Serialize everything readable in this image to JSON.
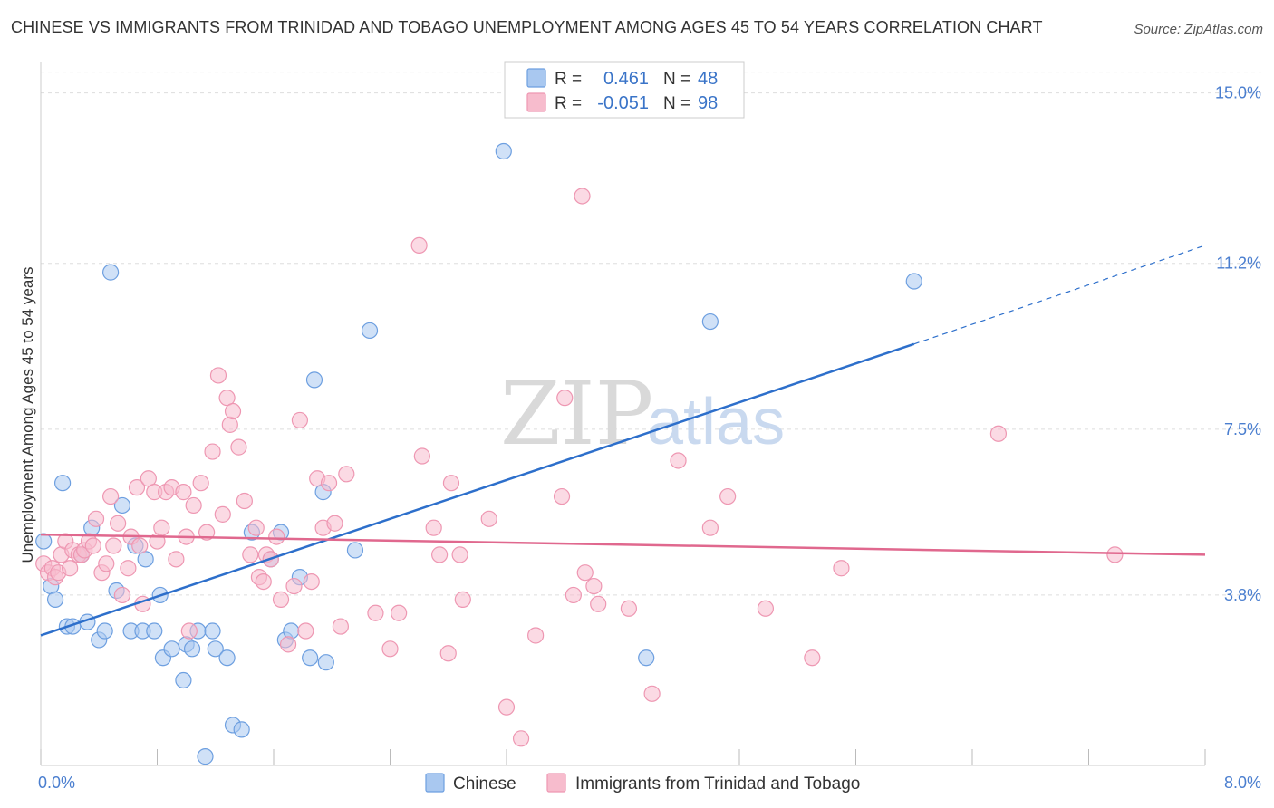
{
  "title": "CHINESE VS IMMIGRANTS FROM TRINIDAD AND TOBAGO UNEMPLOYMENT AMONG AGES 45 TO 54 YEARS CORRELATION CHART",
  "source": "Source: ZipAtlas.com",
  "watermark": {
    "zip": "ZIP",
    "atlas": "atlas"
  },
  "colors": {
    "chinese_fill": "#a9c8f0",
    "chinese_stroke": "#6d9fe0",
    "chinese_line": "#2d6fcb",
    "tt_fill": "#f7bccd",
    "tt_stroke": "#ee97b2",
    "tt_line": "#e0688e",
    "grid": "#dddddd",
    "axis_tick": "#4a7ecf"
  },
  "legend": {
    "rows": [
      {
        "r_label": "R =",
        "r_value": "0.461",
        "n_label": "N =",
        "n_value": "48"
      },
      {
        "r_label": "R =",
        "r_value": "-0.051",
        "n_label": "N =",
        "n_value": "98"
      }
    ]
  },
  "chart_data": {
    "type": "scatter",
    "title": "CHINESE VS IMMIGRANTS FROM TRINIDAD AND TOBAGO UNEMPLOYMENT AMONG AGES 45 TO 54 YEARS CORRELATION CHART",
    "xlabel": "",
    "ylabel": "Unemployment Among Ages 45 to 54 years",
    "xlim": [
      0,
      8.0
    ],
    "ylim": [
      0,
      15.7
    ],
    "x_tick_labels": [
      "0.0%",
      "8.0%"
    ],
    "y_ticks": [
      3.8,
      7.5,
      11.2,
      15.0
    ],
    "y_tick_labels": [
      "3.8%",
      "7.5%",
      "11.2%",
      "15.0%"
    ],
    "grid": true,
    "series": [
      {
        "name": "Chinese",
        "trend": {
          "x0": 0.0,
          "y0": 2.9,
          "x1": 6.0,
          "y1": 9.4,
          "dashed_to_x": 8.0,
          "dashed_to_y": 11.6
        },
        "points": [
          [
            0.02,
            5.0
          ],
          [
            0.07,
            4.0
          ],
          [
            0.1,
            3.7
          ],
          [
            0.15,
            6.3
          ],
          [
            0.18,
            3.1
          ],
          [
            0.22,
            3.1
          ],
          [
            0.28,
            4.7
          ],
          [
            0.32,
            3.2
          ],
          [
            0.35,
            5.3
          ],
          [
            0.4,
            2.8
          ],
          [
            0.44,
            3.0
          ],
          [
            0.48,
            11.0
          ],
          [
            0.52,
            3.9
          ],
          [
            0.56,
            5.8
          ],
          [
            0.62,
            3.0
          ],
          [
            0.65,
            4.9
          ],
          [
            0.7,
            3.0
          ],
          [
            0.72,
            4.6
          ],
          [
            0.78,
            3.0
          ],
          [
            0.82,
            3.8
          ],
          [
            0.84,
            2.4
          ],
          [
            0.9,
            2.6
          ],
          [
            0.98,
            1.9
          ],
          [
            1.0,
            2.7
          ],
          [
            1.04,
            2.6
          ],
          [
            1.08,
            3.0
          ],
          [
            1.13,
            0.2
          ],
          [
            1.18,
            3.0
          ],
          [
            1.2,
            2.6
          ],
          [
            1.28,
            2.4
          ],
          [
            1.32,
            0.9
          ],
          [
            1.38,
            0.8
          ],
          [
            1.45,
            5.2
          ],
          [
            1.58,
            4.6
          ],
          [
            1.65,
            5.2
          ],
          [
            1.68,
            2.8
          ],
          [
            1.72,
            3.0
          ],
          [
            1.78,
            4.2
          ],
          [
            1.85,
            2.4
          ],
          [
            1.88,
            8.6
          ],
          [
            1.94,
            6.1
          ],
          [
            1.96,
            2.3
          ],
          [
            2.16,
            4.8
          ],
          [
            2.26,
            9.7
          ],
          [
            3.18,
            13.7
          ],
          [
            4.16,
            2.4
          ],
          [
            4.6,
            9.9
          ],
          [
            6.0,
            10.8
          ]
        ]
      },
      {
        "name": "Immigrants from Trinidad and Tobago",
        "trend": {
          "x0": 0.0,
          "y0": 5.15,
          "x1": 8.0,
          "y1": 4.7
        },
        "points": [
          [
            0.02,
            4.5
          ],
          [
            0.05,
            4.3
          ],
          [
            0.08,
            4.4
          ],
          [
            0.1,
            4.2
          ],
          [
            0.12,
            4.3
          ],
          [
            0.14,
            4.7
          ],
          [
            0.17,
            5.0
          ],
          [
            0.2,
            4.4
          ],
          [
            0.22,
            4.8
          ],
          [
            0.26,
            4.7
          ],
          [
            0.28,
            4.7
          ],
          [
            0.3,
            4.8
          ],
          [
            0.33,
            5.0
          ],
          [
            0.36,
            4.9
          ],
          [
            0.38,
            5.5
          ],
          [
            0.42,
            4.3
          ],
          [
            0.45,
            4.5
          ],
          [
            0.48,
            6.0
          ],
          [
            0.5,
            4.9
          ],
          [
            0.53,
            5.4
          ],
          [
            0.56,
            3.8
          ],
          [
            0.6,
            4.4
          ],
          [
            0.62,
            5.1
          ],
          [
            0.66,
            6.2
          ],
          [
            0.68,
            4.9
          ],
          [
            0.7,
            3.6
          ],
          [
            0.74,
            6.4
          ],
          [
            0.78,
            6.1
          ],
          [
            0.8,
            5.0
          ],
          [
            0.83,
            5.3
          ],
          [
            0.86,
            6.1
          ],
          [
            0.9,
            6.2
          ],
          [
            0.93,
            4.6
          ],
          [
            0.98,
            6.1
          ],
          [
            1.0,
            5.1
          ],
          [
            1.02,
            3.0
          ],
          [
            1.05,
            5.8
          ],
          [
            1.1,
            6.3
          ],
          [
            1.14,
            5.2
          ],
          [
            1.18,
            7.0
          ],
          [
            1.22,
            8.7
          ],
          [
            1.25,
            5.6
          ],
          [
            1.28,
            8.2
          ],
          [
            1.3,
            7.6
          ],
          [
            1.32,
            7.9
          ],
          [
            1.36,
            7.1
          ],
          [
            1.4,
            5.9
          ],
          [
            1.44,
            4.7
          ],
          [
            1.48,
            5.3
          ],
          [
            1.5,
            4.2
          ],
          [
            1.53,
            4.1
          ],
          [
            1.55,
            4.7
          ],
          [
            1.58,
            4.6
          ],
          [
            1.62,
            5.1
          ],
          [
            1.65,
            3.7
          ],
          [
            1.7,
            2.7
          ],
          [
            1.74,
            4.0
          ],
          [
            1.78,
            7.7
          ],
          [
            1.82,
            3.0
          ],
          [
            1.86,
            4.1
          ],
          [
            1.9,
            6.4
          ],
          [
            1.94,
            5.3
          ],
          [
            1.98,
            6.3
          ],
          [
            2.02,
            5.4
          ],
          [
            2.06,
            3.1
          ],
          [
            2.1,
            6.5
          ],
          [
            2.3,
            3.4
          ],
          [
            2.4,
            2.6
          ],
          [
            2.46,
            3.4
          ],
          [
            2.6,
            11.6
          ],
          [
            2.62,
            6.9
          ],
          [
            2.7,
            5.3
          ],
          [
            2.74,
            4.7
          ],
          [
            2.8,
            2.5
          ],
          [
            2.82,
            6.3
          ],
          [
            2.88,
            4.7
          ],
          [
            2.9,
            3.7
          ],
          [
            3.08,
            5.5
          ],
          [
            3.2,
            1.3
          ],
          [
            3.3,
            0.6
          ],
          [
            3.4,
            2.9
          ],
          [
            3.58,
            6.0
          ],
          [
            3.6,
            8.2
          ],
          [
            3.66,
            3.8
          ],
          [
            3.72,
            12.7
          ],
          [
            3.74,
            4.3
          ],
          [
            3.8,
            4.0
          ],
          [
            3.83,
            3.6
          ],
          [
            4.04,
            3.5
          ],
          [
            4.2,
            1.6
          ],
          [
            4.38,
            6.8
          ],
          [
            4.6,
            5.3
          ],
          [
            4.72,
            6.0
          ],
          [
            4.98,
            3.5
          ],
          [
            5.3,
            2.4
          ],
          [
            5.5,
            4.4
          ],
          [
            6.58,
            7.4
          ],
          [
            7.38,
            4.7
          ]
        ]
      }
    ]
  },
  "bottom_legend": [
    {
      "label": "Chinese"
    },
    {
      "label": "Immigrants from Trinidad and Tobago"
    }
  ]
}
